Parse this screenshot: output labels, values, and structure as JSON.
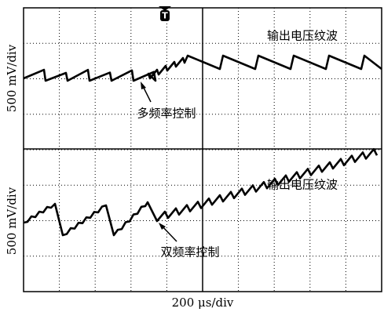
{
  "trigger": "T",
  "panels": [
    {
      "y_label": "500 mV/div",
      "title": "输出电压纹波",
      "annotation": "多频率控制"
    },
    {
      "y_label": "500 mV/div",
      "title": "输出电压纹波",
      "annotation": "双频率控制"
    }
  ],
  "x_label": "200 μs/div"
}
